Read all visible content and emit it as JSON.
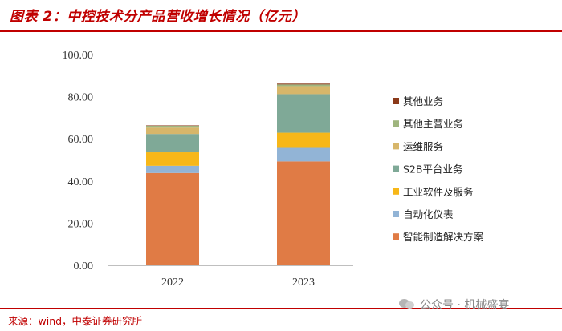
{
  "header": {
    "title": "图表 2：中控技术分产品营收增长情况（亿元）"
  },
  "footer": {
    "source": "来源：wind，中泰证券研究所",
    "watermark": "公众号 · 机械盛宴"
  },
  "chart_data": {
    "type": "bar",
    "stacked": true,
    "categories": [
      "2022",
      "2023"
    ],
    "ylim": [
      0,
      100
    ],
    "yticks": [
      "0.00",
      "20.00",
      "40.00",
      "60.00",
      "80.00",
      "100.00"
    ],
    "legend_position": "right",
    "grid": false,
    "series": [
      {
        "name": "智能制造解决方案",
        "color": "#e07b45",
        "values": [
          43.8,
          49.3
        ]
      },
      {
        "name": "自动化仪表",
        "color": "#92b4d6",
        "values": [
          3.4,
          6.4
        ]
      },
      {
        "name": "工业软件及服务",
        "color": "#f7b718",
        "values": [
          6.4,
          7.2
        ]
      },
      {
        "name": "S2B平台业务",
        "color": "#7fa997",
        "values": [
          8.7,
          18.3
        ]
      },
      {
        "name": "运维服务",
        "color": "#d7b66a",
        "values": [
          3.0,
          3.8
        ]
      },
      {
        "name": "其他主营业务",
        "color": "#9fb57e",
        "values": [
          0.9,
          0.8
        ]
      },
      {
        "name": "其他业务",
        "color": "#8b3a1a",
        "values": [
          0.2,
          0.4
        ]
      }
    ]
  }
}
